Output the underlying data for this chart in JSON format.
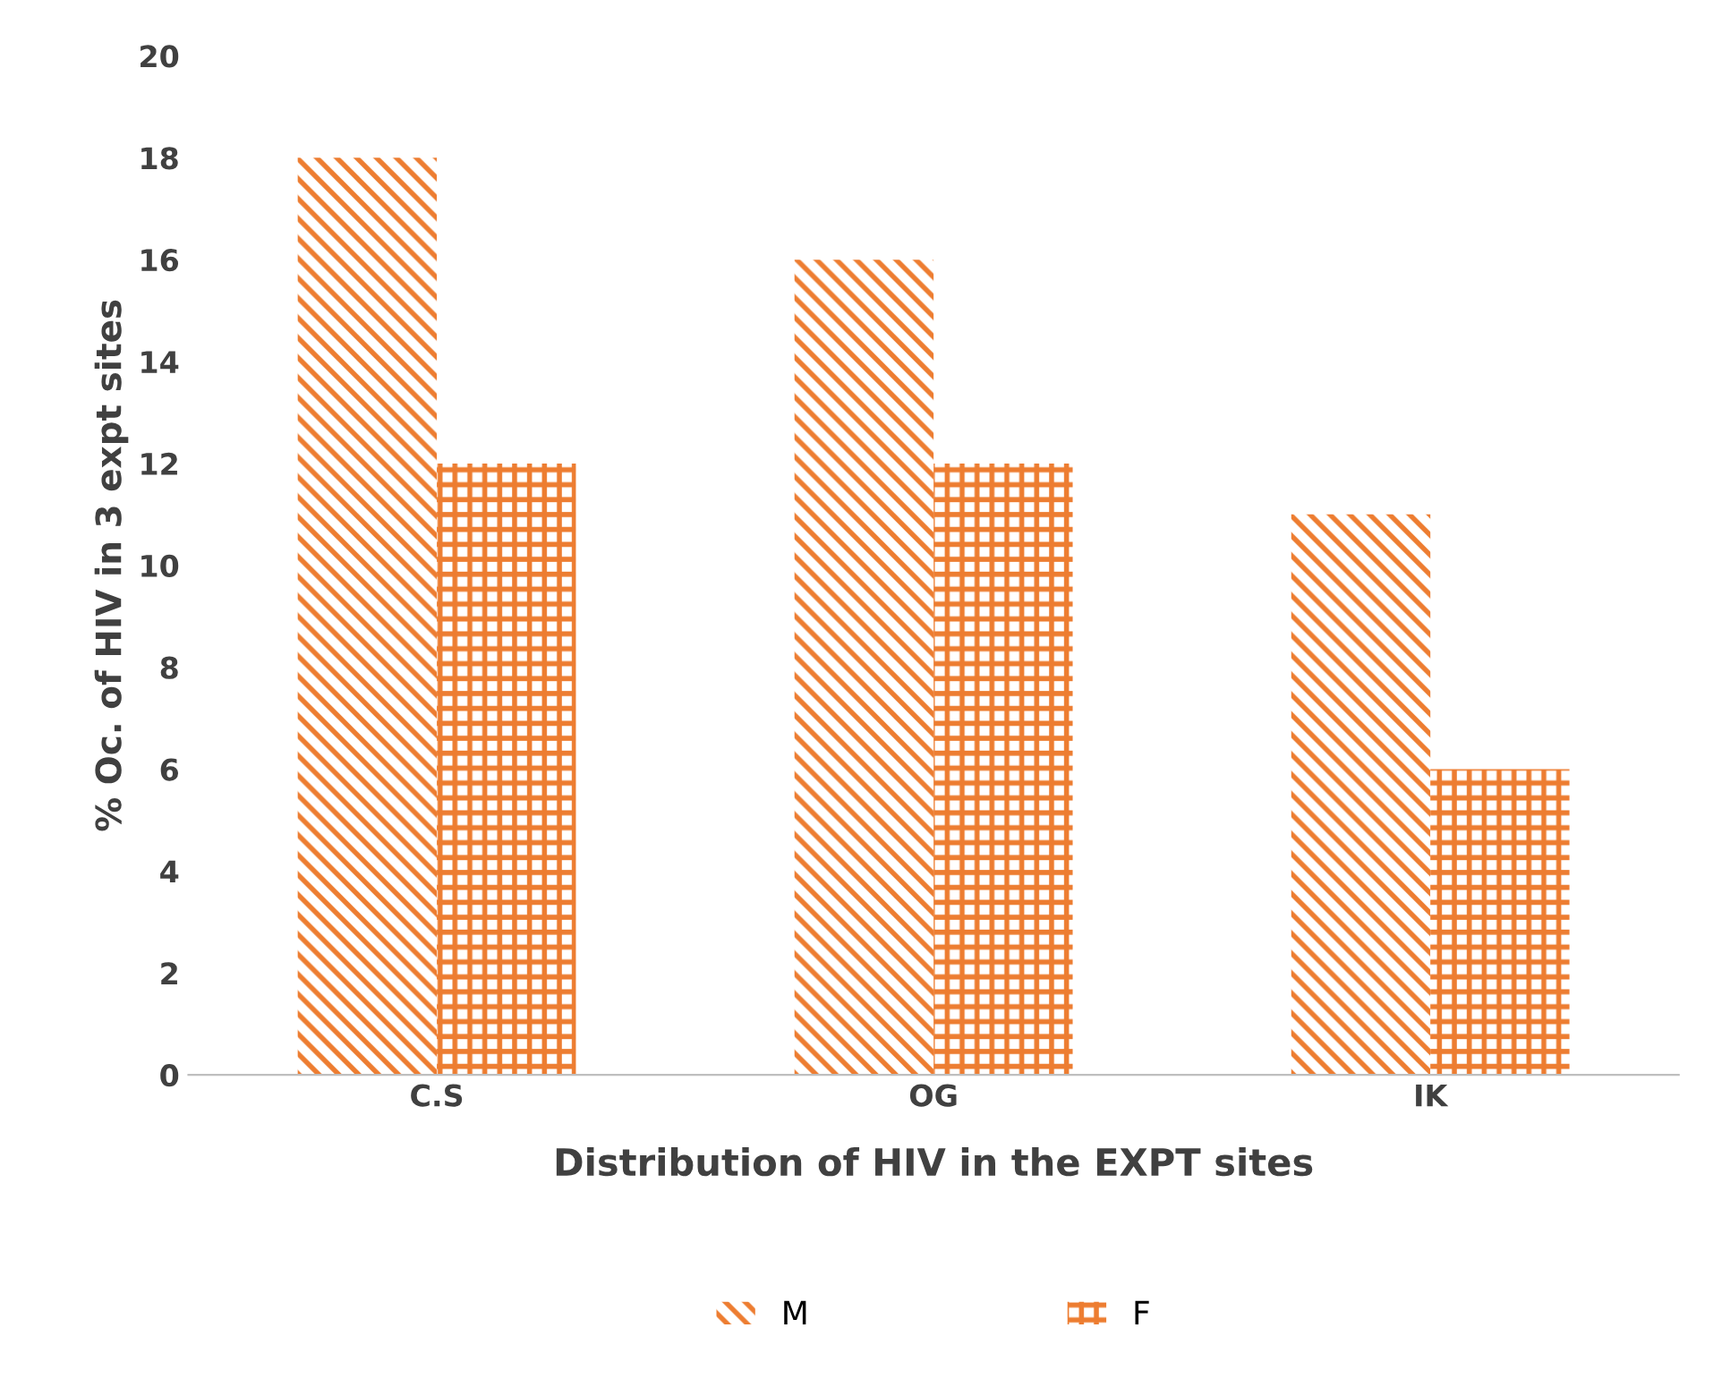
{
  "chart_data": {
    "type": "bar",
    "xlabel": "Distribution of HIV in the EXPT sites",
    "ylabel": "% Oc. of HIV in 3 expt sites",
    "categories": [
      "C.S",
      "OG",
      "IK"
    ],
    "series": [
      {
        "name": "M",
        "color": "#ed7d31",
        "values": [
          18,
          16,
          11
        ]
      },
      {
        "name": "F",
        "color": "#ed7d31",
        "values": [
          12,
          12,
          6
        ]
      }
    ],
    "ylim": [
      0,
      20
    ],
    "yticks": [
      0,
      2,
      4,
      6,
      8,
      10,
      12,
      14,
      16,
      18,
      20
    ],
    "grid": false,
    "legend": "bottom"
  }
}
